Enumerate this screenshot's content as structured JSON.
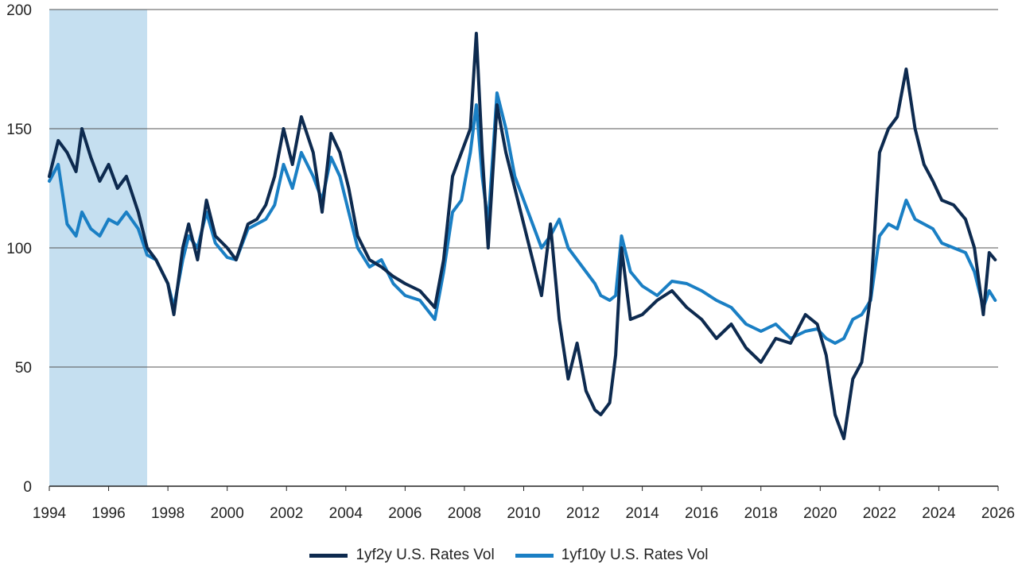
{
  "chart_data": {
    "type": "line",
    "title": "",
    "xlabel": "",
    "ylabel": "",
    "xlim": [
      1994,
      2026
    ],
    "ylim": [
      0,
      200
    ],
    "x_ticks": [
      "1994",
      "1996",
      "1998",
      "2000",
      "2002",
      "2004",
      "2006",
      "2008",
      "2010",
      "2012",
      "2014",
      "2016",
      "2018",
      "2020",
      "2022",
      "2024",
      "2026"
    ],
    "y_ticks": [
      "0",
      "50",
      "100",
      "150",
      "200"
    ],
    "grid": "horizontal",
    "legend": "bottom-center",
    "shaded_region": {
      "from": 1994.0,
      "to": 1997.3,
      "color": "#c5dff0"
    },
    "series": [
      {
        "name": "1yf2y U.S. Rates Vol",
        "color": "#0d2a4f",
        "x": [
          1994.0,
          1994.3,
          1994.6,
          1994.9,
          1995.1,
          1995.4,
          1995.7,
          1996.0,
          1996.3,
          1996.6,
          1997.0,
          1997.3,
          1997.6,
          1998.0,
          1998.2,
          1998.5,
          1998.7,
          1999.0,
          1999.3,
          1999.6,
          2000.0,
          2000.3,
          2000.7,
          2001.0,
          2001.3,
          2001.6,
          2001.9,
          2002.2,
          2002.5,
          2002.9,
          2003.2,
          2003.5,
          2003.8,
          2004.1,
          2004.4,
          2004.8,
          2005.2,
          2005.6,
          2006.0,
          2006.5,
          2007.0,
          2007.3,
          2007.6,
          2007.9,
          2008.2,
          2008.4,
          2008.6,
          2008.8,
          2009.1,
          2009.4,
          2009.7,
          2010.0,
          2010.3,
          2010.6,
          2010.9,
          2011.2,
          2011.5,
          2011.8,
          2012.1,
          2012.4,
          2012.6,
          2012.9,
          2013.1,
          2013.3,
          2013.6,
          2014.0,
          2014.5,
          2015.0,
          2015.5,
          2016.0,
          2016.5,
          2017.0,
          2017.5,
          2018.0,
          2018.5,
          2019.0,
          2019.5,
          2019.9,
          2020.2,
          2020.5,
          2020.8,
          2021.1,
          2021.4,
          2021.7,
          2022.0,
          2022.3,
          2022.6,
          2022.9,
          2023.2,
          2023.5,
          2023.8,
          2024.1,
          2024.5,
          2024.9,
          2025.2,
          2025.5,
          2025.7,
          2025.9
        ],
        "values": [
          130,
          145,
          140,
          132,
          150,
          138,
          128,
          135,
          125,
          130,
          115,
          100,
          95,
          85,
          72,
          100,
          110,
          95,
          120,
          105,
          100,
          95,
          110,
          112,
          118,
          130,
          150,
          135,
          155,
          140,
          115,
          148,
          140,
          125,
          105,
          95,
          92,
          88,
          85,
          82,
          75,
          95,
          130,
          140,
          150,
          190,
          140,
          100,
          160,
          140,
          125,
          110,
          95,
          80,
          110,
          70,
          45,
          60,
          40,
          32,
          30,
          35,
          55,
          100,
          70,
          72,
          78,
          82,
          75,
          70,
          62,
          68,
          58,
          52,
          62,
          60,
          72,
          68,
          55,
          30,
          20,
          45,
          52,
          80,
          140,
          150,
          155,
          175,
          150,
          135,
          128,
          120,
          118,
          112,
          100,
          72,
          98,
          95
        ]
      },
      {
        "name": "1yf10y U.S. Rates Vol",
        "color": "#1a7fc4",
        "x": [
          1994.0,
          1994.3,
          1994.6,
          1994.9,
          1995.1,
          1995.4,
          1995.7,
          1996.0,
          1996.3,
          1996.6,
          1997.0,
          1997.3,
          1997.6,
          1998.0,
          1998.2,
          1998.5,
          1998.7,
          1999.0,
          1999.3,
          1999.6,
          2000.0,
          2000.3,
          2000.7,
          2001.0,
          2001.3,
          2001.6,
          2001.9,
          2002.2,
          2002.5,
          2002.9,
          2003.2,
          2003.5,
          2003.8,
          2004.1,
          2004.4,
          2004.8,
          2005.2,
          2005.6,
          2006.0,
          2006.5,
          2007.0,
          2007.3,
          2007.6,
          2007.9,
          2008.2,
          2008.4,
          2008.6,
          2008.8,
          2009.1,
          2009.4,
          2009.7,
          2010.0,
          2010.3,
          2010.6,
          2010.9,
          2011.2,
          2011.5,
          2011.8,
          2012.1,
          2012.4,
          2012.6,
          2012.9,
          2013.1,
          2013.3,
          2013.6,
          2014.0,
          2014.5,
          2015.0,
          2015.5,
          2016.0,
          2016.5,
          2017.0,
          2017.5,
          2018.0,
          2018.5,
          2019.0,
          2019.5,
          2019.9,
          2020.2,
          2020.5,
          2020.8,
          2021.1,
          2021.4,
          2021.7,
          2022.0,
          2022.3,
          2022.6,
          2022.9,
          2023.2,
          2023.5,
          2023.8,
          2024.1,
          2024.5,
          2024.9,
          2025.2,
          2025.5,
          2025.7,
          2025.9
        ],
        "values": [
          128,
          135,
          110,
          105,
          115,
          108,
          105,
          112,
          110,
          115,
          108,
          97,
          95,
          85,
          75,
          95,
          105,
          100,
          115,
          102,
          96,
          95,
          108,
          110,
          112,
          118,
          135,
          125,
          140,
          130,
          120,
          138,
          130,
          115,
          100,
          92,
          95,
          85,
          80,
          78,
          70,
          90,
          115,
          120,
          140,
          160,
          130,
          110,
          165,
          150,
          130,
          120,
          110,
          100,
          105,
          112,
          100,
          95,
          90,
          85,
          80,
          78,
          80,
          105,
          90,
          84,
          80,
          86,
          85,
          82,
          78,
          75,
          68,
          65,
          68,
          62,
          65,
          66,
          62,
          60,
          62,
          70,
          72,
          78,
          105,
          110,
          108,
          120,
          112,
          110,
          108,
          102,
          100,
          98,
          90,
          75,
          82,
          78
        ]
      }
    ]
  }
}
